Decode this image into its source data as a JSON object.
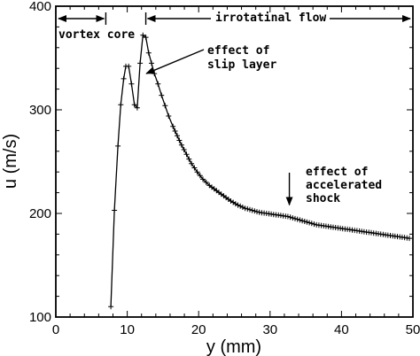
{
  "chart_data": {
    "type": "line",
    "title": "",
    "xlabel": "y (mm)",
    "ylabel": "u (m/s)",
    "xlim": [
      0,
      50
    ],
    "ylim": [
      100,
      400
    ],
    "xticks": [
      0,
      10,
      20,
      30,
      40,
      50
    ],
    "yticks": [
      100,
      200,
      300,
      400
    ],
    "xtick_labels": [
      "0",
      "10",
      "20",
      "30",
      "40",
      "50"
    ],
    "ytick_labels": [
      "100",
      "200",
      "300",
      "400"
    ],
    "grid": false,
    "legend": "none",
    "marker": "plus",
    "line_color": "#000000",
    "series": [
      {
        "x": [
          7.7,
          8.2,
          8.7,
          9.1,
          9.5,
          9.8,
          10.2,
          10.6,
          11.0,
          11.4,
          11.8,
          12.2,
          12.6,
          13.0,
          13.4,
          13.8,
          14.3,
          14.8,
          15.3,
          15.8,
          16.4,
          17.0,
          17.6,
          18.3,
          19.0,
          19.8,
          20.6,
          21.5,
          22.5,
          23.5,
          24.5,
          25.5,
          26.5,
          27.5,
          28.5,
          29.5,
          30.5,
          31.5,
          32.5,
          33.5,
          34.5,
          35.5,
          36.5,
          37.5,
          38.5,
          39.5,
          40.5,
          41.5,
          42.5,
          43.5,
          44.5,
          45.5,
          46.5,
          47.5,
          48.5,
          49.5
        ],
        "y": [
          110,
          203,
          265,
          305,
          330,
          342,
          342,
          325,
          305,
          302,
          345,
          372,
          370,
          355,
          345,
          335,
          325,
          314,
          304,
          294,
          284,
          275,
          266,
          257,
          248,
          240,
          233,
          227,
          222,
          217,
          212,
          208,
          205,
          203,
          201,
          200,
          199,
          198,
          197,
          195,
          193,
          191,
          189,
          188,
          187,
          186,
          185,
          184,
          183,
          182,
          181,
          180,
          179,
          178,
          177,
          176
        ]
      }
    ],
    "annotations": {
      "vortex_core": "vortex core",
      "irrotational": "irrotatinal flow",
      "slip_layer_line1": "effect of",
      "slip_layer_line2": "slip layer",
      "shock_line1": "effect of",
      "shock_line2": "accelerated",
      "shock_line3": "shock"
    },
    "annotation_anchors": {
      "vortex_core_span": [
        0,
        7
      ],
      "irrotational_span": [
        12.6,
        50
      ],
      "slip_layer_target": [
        12.3,
        335
      ],
      "shock_target": [
        32.7,
        198
      ]
    }
  }
}
